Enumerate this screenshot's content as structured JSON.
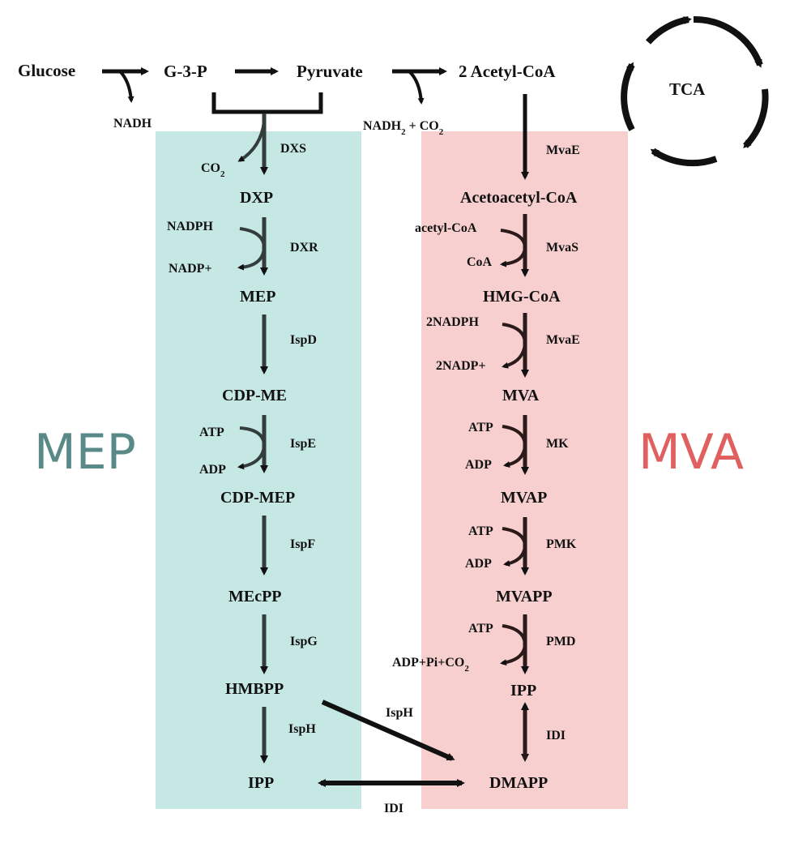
{
  "colors": {
    "mep_panel": "#c5e8e4",
    "mva_panel": "#f8cfcf",
    "mep_title": "#5a8a87",
    "mva_title": "#e06060",
    "ink": "#111111"
  },
  "panels": {
    "mep_title": "MEP",
    "mva_title": "MVA"
  },
  "top": {
    "glucose": "Glucose",
    "g3p": "G-3-P",
    "pyruvate": "Pyruvate",
    "acetyl_coa": "2 Acetyl-CoA",
    "nadh": "NADH",
    "nadh2_co2": "NADH",
    "nadh2_sub": "2",
    "nadh2_tail": " + CO",
    "nadh2_tail_sub": "2",
    "tca": "TCA"
  },
  "mep": {
    "co2": "CO",
    "co2_sub": "2",
    "dxs": "DXS",
    "dxp": "DXP",
    "nadph": "NADPH",
    "nadp": "NADP+",
    "dxr": "DXR",
    "mep": "MEP",
    "ispd": "IspD",
    "cdp_me": "CDP-ME",
    "atp": "ATP",
    "adp": "ADP",
    "ispe": "IspE",
    "cdp_mep": "CDP-MEP",
    "ispf": "IspF",
    "mecpp": "MEcPP",
    "ispg": "IspG",
    "hmbpp": "HMBPP",
    "isph": "IspH",
    "ipp": "IPP"
  },
  "mva": {
    "mvae1": "MvaE",
    "acetoacetyl": "Acetoacetyl-CoA",
    "acetyl_coa": "acetyl-CoA",
    "coa": "CoA",
    "mvas": "MvaS",
    "hmg": "HMG-CoA",
    "nadph2": "2NADPH",
    "nadp2": "2NADP+",
    "mvae2": "MvaE",
    "mva": "MVA",
    "atp1": "ATP",
    "adp1": "ADP",
    "mk": "MK",
    "mvap": "MVAP",
    "atp2": "ATP",
    "adp2": "ADP",
    "pmk": "PMK",
    "mvapp": "MVAPP",
    "atp3": "ATP",
    "adp_pi_co2": "ADP+Pi+CO",
    "adp_pi_co2_sub": "2",
    "pmd": "PMD",
    "ipp": "IPP",
    "idi": "IDI",
    "dmapp": "DMAPP"
  },
  "cross": {
    "isph": "IspH",
    "idi": "IDI"
  }
}
